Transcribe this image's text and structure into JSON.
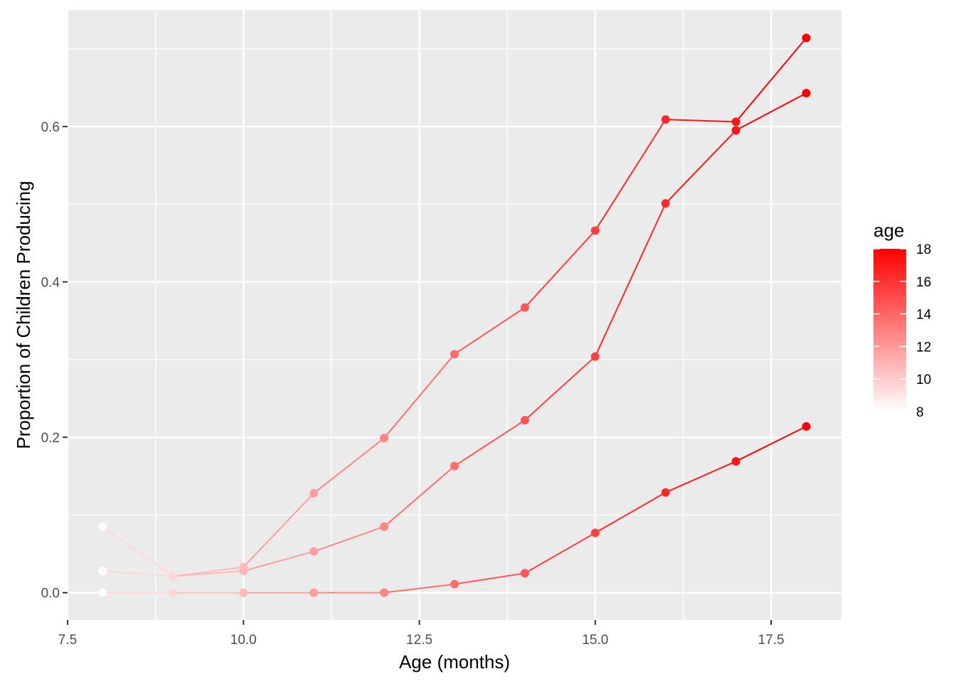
{
  "chart_data": {
    "type": "line",
    "xlabel": "Age (months)",
    "ylabel": "Proportion of Children Producing",
    "xlim": [
      7.5,
      18.5
    ],
    "ylim": [
      -0.035,
      0.75
    ],
    "x_ticks": [
      7.5,
      10.0,
      12.5,
      15.0,
      17.5
    ],
    "x_tick_labels": [
      "7.5",
      "10.0",
      "12.5",
      "15.0",
      "17.5"
    ],
    "y_ticks": [
      0.0,
      0.2,
      0.4,
      0.6
    ],
    "y_tick_labels": [
      "0.0",
      "0.2",
      "0.4",
      "0.6"
    ],
    "grid": true,
    "background": "#ebebeb",
    "series": [
      {
        "x": [
          8,
          9,
          10,
          11,
          12,
          13,
          14,
          15,
          16,
          17,
          18
        ],
        "y": [
          0.085,
          0.021,
          0.033,
          0.128,
          0.199,
          0.307,
          0.367,
          0.466,
          0.609,
          0.606,
          0.714
        ]
      },
      {
        "x": [
          8,
          9,
          10,
          11,
          12,
          13,
          14,
          15,
          16,
          17,
          18
        ],
        "y": [
          0.028,
          0.021,
          0.028,
          0.053,
          0.085,
          0.163,
          0.222,
          0.304,
          0.501,
          0.595,
          0.643
        ]
      },
      {
        "x": [
          8,
          9,
          10,
          11,
          12,
          13,
          14,
          15,
          16,
          17,
          18
        ],
        "y": [
          0.0,
          0.0,
          0.0,
          0.0,
          0.0,
          0.011,
          0.025,
          0.077,
          0.129,
          0.169,
          0.214
        ]
      }
    ],
    "color_legend": {
      "title": "age",
      "min": 8,
      "max": 18,
      "low_color": "#ffffff",
      "high_color": "#ff0000",
      "tick_values": [
        8,
        10,
        12,
        14,
        16,
        18
      ],
      "tick_labels": [
        "8",
        "10",
        "12",
        "14",
        "16",
        "18"
      ],
      "placement": "right"
    }
  }
}
